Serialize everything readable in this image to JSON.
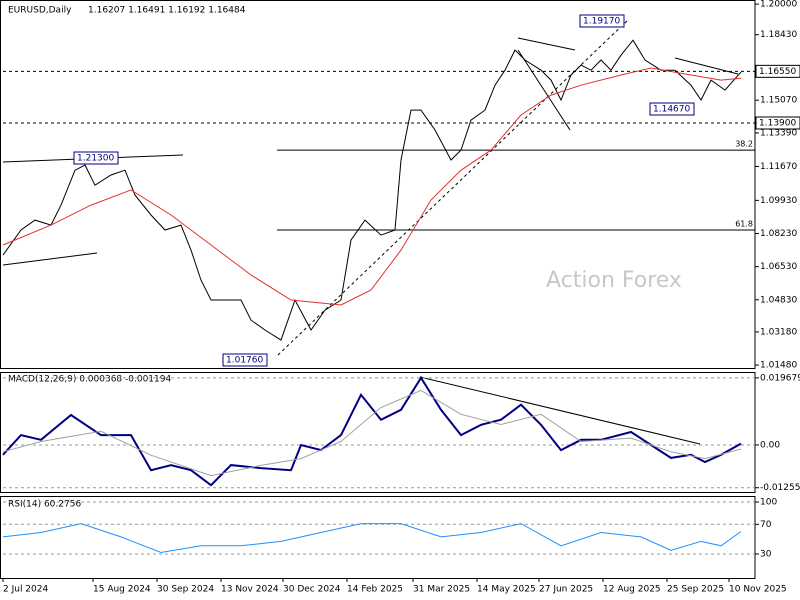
{
  "chart_data": {
    "type": "ohlc-indicators",
    "title": "EURUSD,Daily",
    "ohlc_text": "1.16207 1.16491 1.16192 1.16484",
    "watermark": "Action Forex",
    "xlim": [
      0,
      376
    ],
    "xticks": [
      {
        "value": 0,
        "label": "2 Jul 2024"
      },
      {
        "value": 45,
        "label": "15 Aug 2024"
      },
      {
        "value": 77,
        "label": "30 Sep 2024"
      },
      {
        "value": 109,
        "label": "13 Nov 2024"
      },
      {
        "value": 140,
        "label": "30 Dec 2024"
      },
      {
        "value": 172,
        "label": "14 Feb 2025"
      },
      {
        "value": 205,
        "label": "31 Mar 2025"
      },
      {
        "value": 237,
        "label": "14 May 2025"
      },
      {
        "value": 268,
        "label": "27 Jun 2025"
      },
      {
        "value": 300,
        "label": "12 Aug 2025"
      },
      {
        "value": 332,
        "label": "25 Sep 2025"
      },
      {
        "value": 363,
        "label": "10 Nov 2025"
      }
    ],
    "price": {
      "ylim": [
        1.0133,
        1.2021
      ],
      "yticks": [
        {
          "value": 1.2,
          "label": "1.20000"
        },
        {
          "value": 1.1843,
          "label": "1.18430"
        },
        {
          "value": 1.1507,
          "label": "1.15070"
        },
        {
          "value": 1.1339,
          "label": "1.13390"
        },
        {
          "value": 1.1167,
          "label": "1.11670"
        },
        {
          "value": 1.0993,
          "label": "1.09930"
        },
        {
          "value": 1.0823,
          "label": "1.08230"
        },
        {
          "value": 1.0653,
          "label": "1.06530"
        },
        {
          "value": 1.0483,
          "label": "1.04830"
        },
        {
          "value": 1.0318,
          "label": "1.03180"
        },
        {
          "value": 1.0148,
          "label": "1.01480"
        }
      ],
      "hlines": [
        {
          "value": 1.1655,
          "label": "1.16550"
        },
        {
          "value": 1.139,
          "label": "1.13900"
        }
      ],
      "fib_levels": [
        {
          "value": 1.1251,
          "label": "38.2"
        },
        {
          "value": 1.0841,
          "label": "61.8"
        }
      ],
      "annotations": [
        "1.19170",
        "1.21300",
        "1.01760",
        "1.14670"
      ],
      "series": [
        {
          "name": "EURUSD",
          "color": "#000000",
          "x": [
            0,
            9,
            16,
            24,
            29,
            36,
            41,
            46,
            54,
            61,
            66,
            74,
            81,
            89,
            94,
            99,
            104,
            111,
            119,
            124,
            131,
            139,
            146,
            154,
            161,
            169,
            174,
            181,
            189,
            196,
            199,
            204,
            209,
            216,
            224,
            229,
            234,
            241,
            246,
            251,
            256,
            261,
            269,
            274,
            279,
            284,
            289,
            294,
            299,
            304,
            309,
            315,
            321,
            329,
            336,
            344,
            349,
            354,
            361,
            369
          ],
          "values": [
            1.0712,
            1.0841,
            1.0892,
            1.0866,
            1.0969,
            1.1148,
            1.1174,
            1.1071,
            1.1123,
            1.1148,
            1.102,
            1.0918,
            1.0841,
            1.0866,
            1.0738,
            1.0584,
            1.0482,
            1.0482,
            1.0482,
            1.0379,
            1.0328,
            1.0276,
            1.0482,
            1.0328,
            1.043,
            1.0482,
            1.0789,
            1.0892,
            1.0815,
            1.0841,
            1.12,
            1.1456,
            1.1456,
            1.1354,
            1.12,
            1.1251,
            1.1405,
            1.1456,
            1.1584,
            1.1661,
            1.1764,
            1.1713,
            1.1661,
            1.161,
            1.1508,
            1.1636,
            1.1687,
            1.1661,
            1.1713,
            1.1661,
            1.1738,
            1.1815,
            1.1713,
            1.1661,
            1.1661,
            1.1584,
            1.1508,
            1.161,
            1.1559,
            1.1651
          ]
        },
        {
          "name": "MA",
          "color": "#e03030",
          "x": [
            0,
            24,
            44,
            64,
            84,
            104,
            124,
            144,
            169,
            184,
            199,
            214,
            229,
            244,
            259,
            274,
            289,
            309,
            324,
            344,
            359,
            369
          ],
          "values": [
            1.0764,
            1.0866,
            1.0969,
            1.1046,
            1.0918,
            1.0764,
            1.061,
            1.0482,
            1.0456,
            1.0533,
            1.0738,
            1.0995,
            1.1148,
            1.1251,
            1.1431,
            1.1533,
            1.1584,
            1.1636,
            1.1672,
            1.1636,
            1.161,
            1.162
          ]
        }
      ]
    },
    "macd": {
      "label": "MACD(12,26,9) 0.000368 -0.001194",
      "ylim": [
        -0.0138,
        0.0214
      ],
      "yticks": [
        {
          "value": 0.019679,
          "label": "0.019679"
        },
        {
          "value": 0,
          "label": "0.00"
        },
        {
          "value": -0.012552,
          "label": "-0.012552"
        }
      ],
      "series": [
        {
          "name": "MACD",
          "color": "#000080",
          "x": [
            0,
            9,
            19,
            34,
            49,
            64,
            74,
            84,
            94,
            104,
            114,
            129,
            144,
            149,
            159,
            169,
            179,
            189,
            199,
            209,
            219,
            229,
            239,
            249,
            259,
            269,
            279,
            289,
            299,
            314,
            324,
            334,
            344,
            351,
            359,
            369
          ],
          "values": [
            -0.0029,
            0.0029,
            0.0015,
            0.0088,
            0.0029,
            0.0029,
            -0.0074,
            -0.0059,
            -0.0074,
            -0.0118,
            -0.0059,
            -0.0068,
            -0.0074,
            0,
            -0.0015,
            0.0029,
            0.0147,
            0.0074,
            0.0103,
            0.0197,
            0.0103,
            0.0029,
            0.0059,
            0.0074,
            0.0118,
            0.0059,
            -0.0015,
            0.0015,
            0.0015,
            0.0038,
            0,
            -0.0038,
            -0.0029,
            -0.005,
            -0.0029,
            0.0004
          ]
        },
        {
          "name": "Signal",
          "color": "#a0a0a0",
          "x": [
            0,
            19,
            49,
            74,
            104,
            129,
            149,
            169,
            189,
            209,
            229,
            249,
            269,
            289,
            314,
            334,
            351,
            369
          ],
          "values": [
            -0.002,
            0.001,
            0.004,
            -0.003,
            -0.009,
            -0.006,
            -0.004,
            0.001,
            0.011,
            0.016,
            0.009,
            0.006,
            0.009,
            0.001,
            0.002,
            -0.002,
            -0.004,
            -0.0012
          ]
        }
      ]
    },
    "rsi": {
      "label": "RSI(14) 60.2756",
      "ylim": [
        -2.3,
        108.1
      ],
      "yticks": [
        100,
        70,
        30
      ],
      "series": [
        {
          "name": "RSI",
          "color": "#1e90ff",
          "x": [
            0,
            19,
            39,
            59,
            79,
            99,
            119,
            139,
            159,
            179,
            199,
            219,
            239,
            259,
            279,
            299,
            319,
            334,
            349,
            359,
            369
          ],
          "values": [
            53,
            59,
            71,
            53,
            32,
            41,
            41,
            47,
            59,
            71,
            71,
            53,
            59,
            71,
            41,
            59,
            53,
            35,
            47,
            41,
            60.28
          ]
        }
      ]
    }
  }
}
